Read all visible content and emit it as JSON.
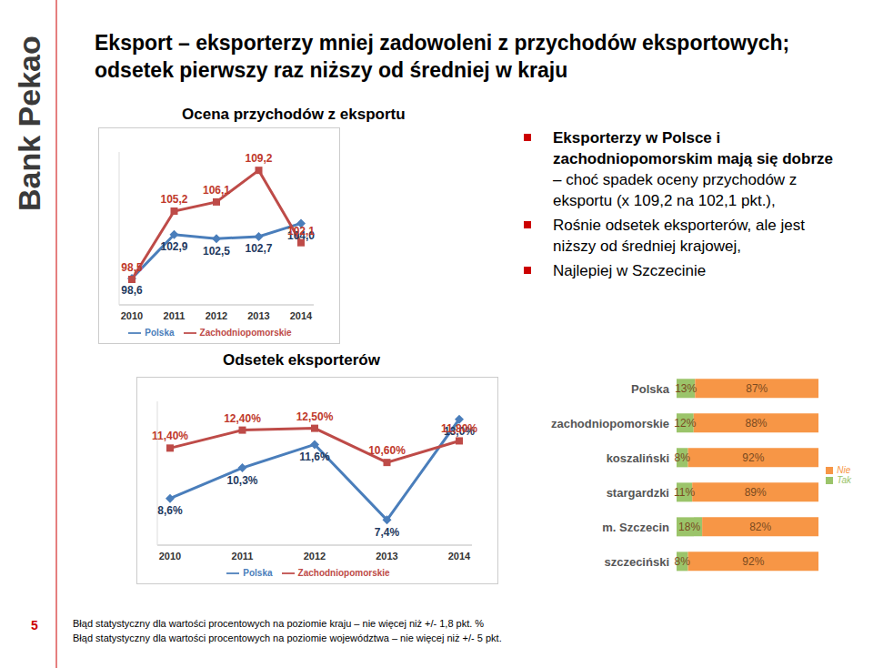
{
  "brand": "Bank Pekao",
  "title": "Eksport – eksporterzy mniej zadowoleni z przychodów eksportowych; odsetek pierwszy raz niższy od średniej w kraju",
  "bullets": [
    {
      "bold": "Eksporterzy w Polsce i zachodniopomorskim mają się dobrze",
      "normal": " – choć spadek oceny przychodów z eksportu (x 109,2 na 102,1 pkt.),"
    },
    {
      "bold": "",
      "normal": "Rośnie odsetek eksporterów, ale jest niższy od średniej krajowej,"
    },
    {
      "bold": "",
      "normal": "Najlepiej w Szczecinie"
    }
  ],
  "page_number": "5",
  "footnotes": [
    "Błąd statystyczny dla wartości procentowych na poziomie kraju – nie więcej niż +/- 1,8 pkt. %",
    "Błąd statystyczny dla wartości procentowych na poziomie województwa – nie więcej niż +/- 5 pkt."
  ],
  "chart_data": [
    {
      "type": "line",
      "title": "Ocena przychodów z eksportu",
      "categories": [
        "2010",
        "2011",
        "2012",
        "2013",
        "2014"
      ],
      "series": [
        {
          "name": "Polska",
          "color": "#4a7ebb",
          "marker": "diamond",
          "values": [
            98.6,
            102.9,
            102.5,
            102.7,
            104.0
          ],
          "value_labels": [
            "98,6",
            "102,9",
            "102,5",
            "102,7",
            "104,0"
          ]
        },
        {
          "name": "Zachodniopomorskie",
          "color": "#be4b48",
          "marker": "square",
          "values": [
            98.5,
            105.2,
            106.1,
            109.2,
            102.1
          ],
          "value_labels": [
            "98,5",
            "105,2",
            "106,1",
            "109,2",
            "102,1"
          ]
        }
      ],
      "ylim": [
        96,
        111
      ],
      "grid": false,
      "legend": "bottom",
      "data_labels": true,
      "tick_labels": "x"
    },
    {
      "type": "line",
      "title": "Odsetek eksporterów",
      "categories": [
        "2010",
        "2011",
        "2012",
        "2013",
        "2014"
      ],
      "series": [
        {
          "name": "Polska",
          "color": "#4a7ebb",
          "marker": "diamond",
          "values": [
            8.6,
            10.3,
            11.6,
            7.4,
            13.0
          ],
          "value_labels": [
            "8,6%",
            "10,3%",
            "11,6%",
            "7,4%",
            "13,0%"
          ]
        },
        {
          "name": "Zachodniopomorskie",
          "color": "#be4b48",
          "marker": "square",
          "values": [
            11.4,
            12.4,
            12.5,
            10.6,
            11.8
          ],
          "value_labels": [
            "11,40%",
            "12,40%",
            "12,50%",
            "10,60%",
            "11,80%"
          ]
        }
      ],
      "ylim": [
        6,
        14
      ],
      "grid": false,
      "legend": "bottom",
      "data_labels": true,
      "tick_labels": "x"
    },
    {
      "type": "bar",
      "orientation": "horizontal",
      "stacked": true,
      "categories": [
        "Polska",
        "zachodniopomorskie",
        "koszaliński",
        "stargardzki",
        "m. Szczecin",
        "szczeciński"
      ],
      "series": [
        {
          "name": "Tak",
          "color": "#9bc46a",
          "values": [
            13,
            12,
            8,
            11,
            18,
            8
          ],
          "value_labels": [
            "13%",
            "12%",
            "8%",
            "11%",
            "18%",
            "8%"
          ]
        },
        {
          "name": "Nie",
          "color": "#f79646",
          "values": [
            87,
            88,
            92,
            89,
            82,
            92
          ],
          "value_labels": [
            "87%",
            "88%",
            "92%",
            "89%",
            "82%",
            "92%"
          ]
        }
      ],
      "xlim": [
        0,
        100
      ],
      "grid": false,
      "legend": "right",
      "data_labels": true,
      "tick_labels": "y"
    }
  ]
}
